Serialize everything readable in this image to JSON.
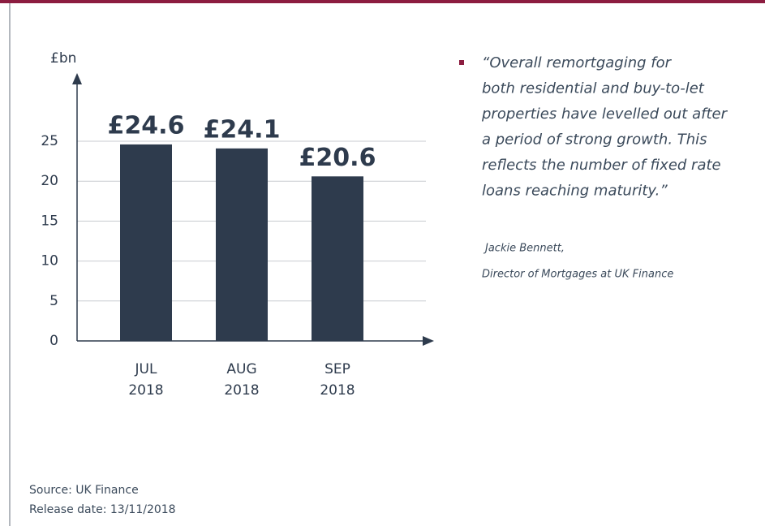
{
  "chart_data": {
    "type": "bar",
    "y_label": "£bn",
    "categories": [
      [
        "JUL",
        "2018"
      ],
      [
        "AUG",
        "2018"
      ],
      [
        "SEP",
        "2018"
      ]
    ],
    "values": [
      24.6,
      24.1,
      20.6
    ],
    "value_labels": [
      "£24.6",
      "£24.1",
      "£20.6"
    ],
    "color": "#2e3b4d",
    "ylim": [
      0,
      25
    ],
    "yticks": [
      0,
      5,
      10,
      15,
      20,
      25
    ],
    "grid": true
  },
  "quote": {
    "lines": [
      "“Overall remortgaging for",
      "both residential and buy-to-let",
      "properties have levelled out after",
      "a period of strong growth. This",
      "reflects the number of fixed rate",
      "loans reaching maturity.”"
    ],
    "attribution": [
      "Jackie Bennett,",
      "Director of Mortgages at UK Finance"
    ]
  },
  "footer": {
    "source": "Source: UK Finance",
    "release": "Release date: 13/11/2018"
  }
}
